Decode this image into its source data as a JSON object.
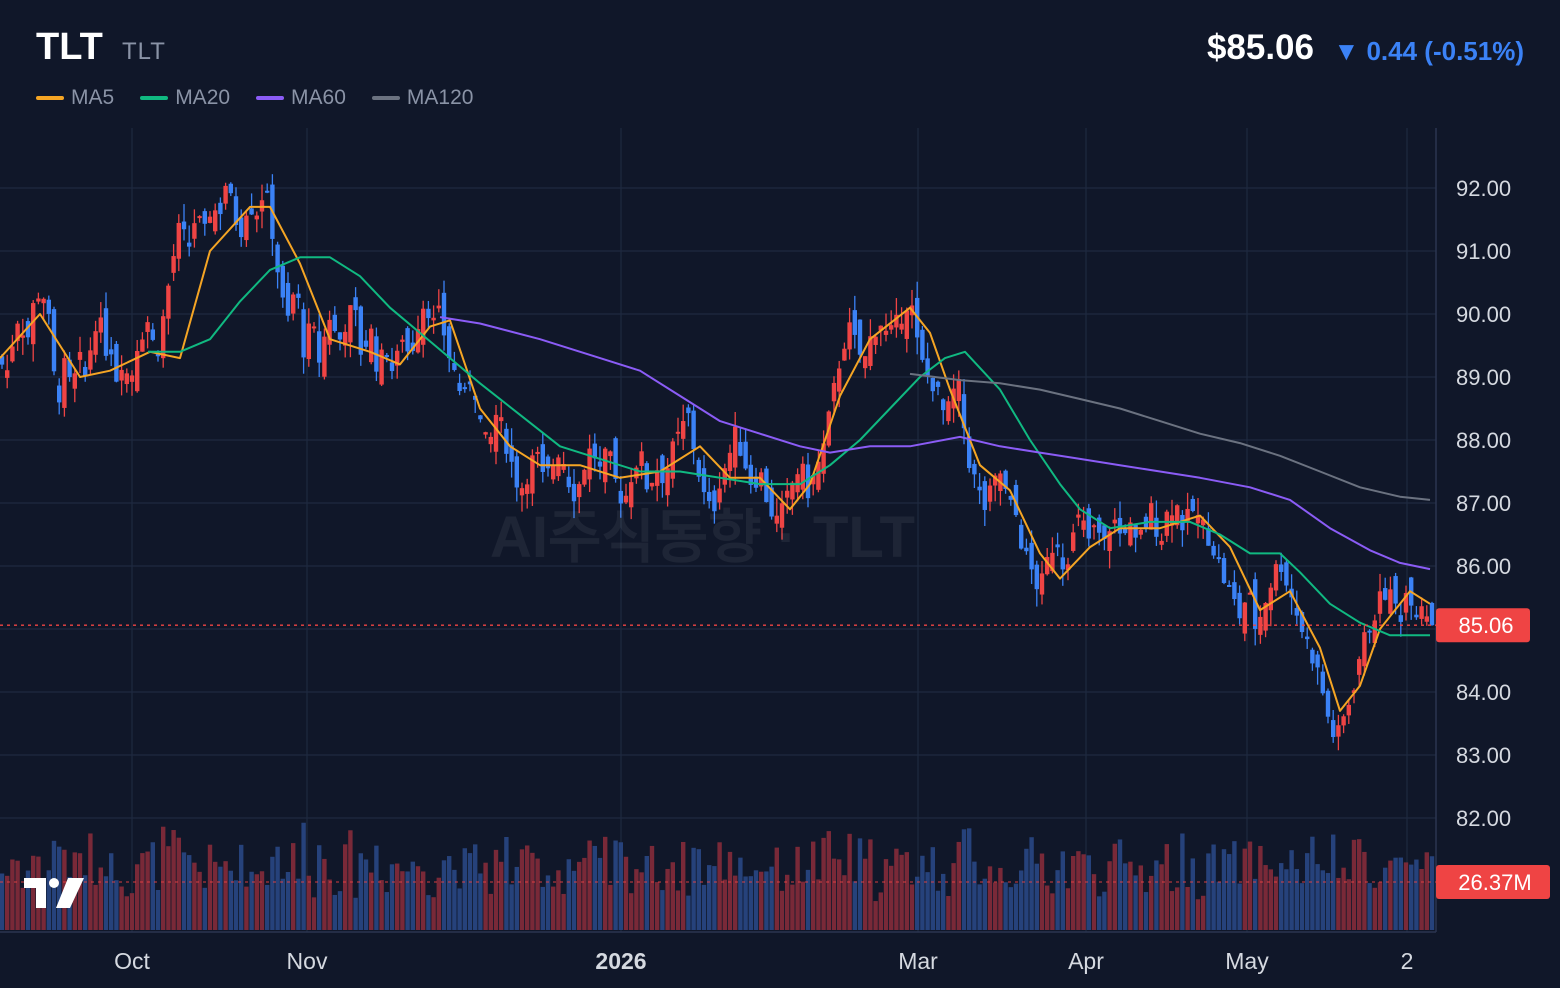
{
  "header": {
    "symbol": "TLT",
    "sub": "TLT",
    "price": "$85.06",
    "change": "▼ 0.44 (-0.51%)",
    "change_color": "#3b82f6"
  },
  "legend": [
    {
      "label": "MA5",
      "color": "#f5a524"
    },
    {
      "label": "MA20",
      "color": "#10b981"
    },
    {
      "label": "MA60",
      "color": "#8b5cf6"
    },
    {
      "label": "MA120",
      "color": "#6b7280"
    }
  ],
  "watermark": "AI주식동향 · TLT",
  "logo": "tradingview-logo",
  "chart_data": {
    "type": "candlestick",
    "y_ticks": [
      "92.00",
      "91.00",
      "90.00",
      "89.00",
      "88.00",
      "87.00",
      "86.00",
      "85.00",
      "84.00",
      "83.00",
      "82.00"
    ],
    "y_range": [
      81.2,
      92.9
    ],
    "x_ticks": [
      {
        "label": "Oct",
        "bold": false
      },
      {
        "label": "Nov",
        "bold": false
      },
      {
        "label": "2026",
        "bold": true
      },
      {
        "label": "Mar",
        "bold": false
      },
      {
        "label": "Apr",
        "bold": false
      },
      {
        "label": "May",
        "bold": false
      },
      {
        "label": "2",
        "bold": false
      }
    ],
    "last_price": 85.06,
    "last_price_label": "85.06",
    "volume_label": "26.37M",
    "colors": {
      "up": "#ef4444",
      "down": "#3b82f6",
      "ma5": "#f5a524",
      "ma20": "#10b981",
      "ma60": "#8b5cf6",
      "ma120": "#6b7280"
    },
    "close_path": [
      [
        0,
        89.3
      ],
      [
        6,
        89.0
      ],
      [
        14,
        89.7
      ],
      [
        20,
        90.1
      ],
      [
        26,
        89.4
      ],
      [
        30,
        89.9
      ],
      [
        36,
        90.3
      ],
      [
        42,
        90.4
      ],
      [
        48,
        90.0
      ],
      [
        54,
        89.0
      ],
      [
        60,
        88.7
      ],
      [
        66,
        89.3
      ],
      [
        72,
        88.6
      ],
      [
        78,
        89.4
      ],
      [
        84,
        88.9
      ],
      [
        92,
        89.6
      ],
      [
        98,
        90.1
      ],
      [
        104,
        89.4
      ],
      [
        110,
        89.6
      ],
      [
        116,
        89.0
      ],
      [
        122,
        89.3
      ],
      [
        130,
        88.9
      ],
      [
        138,
        89.6
      ],
      [
        148,
        89.9
      ],
      [
        156,
        89.3
      ],
      [
        164,
        90.0
      ],
      [
        172,
        90.8
      ],
      [
        180,
        91.4
      ],
      [
        188,
        91.0
      ],
      [
        196,
        91.6
      ],
      [
        204,
        91.2
      ],
      [
        212,
        91.8
      ],
      [
        218,
        91.5
      ],
      [
        226,
        92.1
      ],
      [
        232,
        91.7
      ],
      [
        240,
        91.3
      ],
      [
        248,
        91.8
      ],
      [
        256,
        91.6
      ],
      [
        264,
        92.0
      ],
      [
        270,
        91.6
      ],
      [
        276,
        90.9
      ],
      [
        282,
        90.2
      ],
      [
        288,
        89.9
      ],
      [
        296,
        90.5
      ],
      [
        304,
        89.4
      ],
      [
        312,
        89.9
      ],
      [
        318,
        89.2
      ],
      [
        324,
        89.6
      ],
      [
        330,
        90.0
      ],
      [
        338,
        89.5
      ],
      [
        346,
        89.9
      ],
      [
        354,
        90.1
      ],
      [
        362,
        89.3
      ],
      [
        370,
        89.8
      ],
      [
        378,
        89.1
      ],
      [
        386,
        89.5
      ],
      [
        394,
        89.0
      ],
      [
        402,
        89.7
      ],
      [
        410,
        89.3
      ],
      [
        418,
        89.9
      ],
      [
        426,
        90.3
      ],
      [
        432,
        89.8
      ],
      [
        440,
        90.0
      ],
      [
        448,
        89.4
      ],
      [
        456,
        89.0
      ],
      [
        464,
        88.6
      ],
      [
        472,
        89.1
      ],
      [
        480,
        88.3
      ],
      [
        488,
        87.8
      ],
      [
        496,
        88.4
      ],
      [
        504,
        88.1
      ],
      [
        512,
        87.6
      ],
      [
        520,
        87.2
      ],
      [
        528,
        87.5
      ],
      [
        536,
        87.8
      ],
      [
        544,
        87.3
      ],
      [
        552,
        87.6
      ],
      [
        560,
        87.9
      ],
      [
        568,
        87.4
      ],
      [
        576,
        87.1
      ],
      [
        584,
        87.6
      ],
      [
        592,
        87.9
      ],
      [
        600,
        87.5
      ],
      [
        608,
        87.8
      ],
      [
        616,
        87.3
      ],
      [
        624,
        87.0
      ],
      [
        632,
        87.5
      ],
      [
        640,
        87.8
      ],
      [
        648,
        87.2
      ],
      [
        656,
        87.6
      ],
      [
        664,
        87.4
      ],
      [
        672,
        87.8
      ],
      [
        680,
        88.1
      ],
      [
        688,
        88.4
      ],
      [
        696,
        87.7
      ],
      [
        704,
        87.1
      ],
      [
        712,
        86.8
      ],
      [
        720,
        87.4
      ],
      [
        728,
        87.7
      ],
      [
        736,
        88.1
      ],
      [
        744,
        87.7
      ],
      [
        752,
        87.3
      ],
      [
        760,
        87.5
      ],
      [
        768,
        87.0
      ],
      [
        776,
        86.7
      ],
      [
        784,
        86.9
      ],
      [
        792,
        87.3
      ],
      [
        800,
        87.6
      ],
      [
        808,
        87.2
      ],
      [
        816,
        87.5
      ],
      [
        824,
        87.9
      ],
      [
        832,
        88.6
      ],
      [
        840,
        89.3
      ],
      [
        848,
        89.8
      ],
      [
        856,
        89.5
      ],
      [
        864,
        89.2
      ],
      [
        872,
        89.7
      ],
      [
        880,
        89.9
      ],
      [
        888,
        89.6
      ],
      [
        896,
        89.8
      ],
      [
        904,
        90.1
      ],
      [
        910,
        90.3
      ],
      [
        916,
        89.6
      ],
      [
        922,
        89.2
      ],
      [
        928,
        89.0
      ],
      [
        934,
        88.9
      ],
      [
        940,
        88.6
      ],
      [
        946,
        88.3
      ],
      [
        952,
        88.7
      ],
      [
        958,
        88.9
      ],
      [
        964,
        88.2
      ],
      [
        970,
        87.6
      ],
      [
        976,
        87.3
      ],
      [
        984,
        86.9
      ],
      [
        992,
        87.2
      ],
      [
        1000,
        87.5
      ],
      [
        1008,
        87.0
      ],
      [
        1016,
        86.8
      ],
      [
        1024,
        86.2
      ],
      [
        1032,
        85.9
      ],
      [
        1040,
        85.6
      ],
      [
        1048,
        86.1
      ],
      [
        1056,
        86.5
      ],
      [
        1064,
        86.0
      ],
      [
        1072,
        86.4
      ],
      [
        1080,
        86.8
      ],
      [
        1088,
        86.4
      ],
      [
        1096,
        86.6
      ],
      [
        1104,
        86.3
      ],
      [
        1112,
        86.8
      ],
      [
        1120,
        86.5
      ],
      [
        1128,
        86.7
      ],
      [
        1136,
        86.3
      ],
      [
        1144,
        86.6
      ],
      [
        1152,
        86.9
      ],
      [
        1160,
        86.4
      ],
      [
        1168,
        86.9
      ],
      [
        1176,
        87.0
      ],
      [
        1184,
        86.6
      ],
      [
        1192,
        86.9
      ],
      [
        1200,
        86.7
      ],
      [
        1208,
        86.5
      ],
      [
        1216,
        86.2
      ],
      [
        1224,
        85.8
      ],
      [
        1232,
        85.5
      ],
      [
        1240,
        85.2
      ],
      [
        1248,
        85.6
      ],
      [
        1256,
        85.0
      ],
      [
        1264,
        85.4
      ],
      [
        1272,
        85.8
      ],
      [
        1280,
        86.1
      ],
      [
        1288,
        85.7
      ],
      [
        1296,
        85.3
      ],
      [
        1304,
        84.9
      ],
      [
        1312,
        84.6
      ],
      [
        1320,
        84.2
      ],
      [
        1328,
        83.6
      ],
      [
        1336,
        83.2
      ],
      [
        1344,
        83.6
      ],
      [
        1352,
        84.0
      ],
      [
        1360,
        84.6
      ],
      [
        1368,
        85.0
      ],
      [
        1376,
        85.3
      ],
      [
        1384,
        85.6
      ],
      [
        1392,
        85.5
      ],
      [
        1400,
        85.2
      ],
      [
        1408,
        85.7
      ],
      [
        1416,
        85.3
      ],
      [
        1424,
        85.5
      ],
      [
        1430,
        85.06
      ]
    ],
    "ma_sparse": {
      "ma5": [
        [
          0,
          89.3
        ],
        [
          40,
          90.0
        ],
        [
          80,
          89.0
        ],
        [
          110,
          89.1
        ],
        [
          150,
          89.4
        ],
        [
          180,
          89.3
        ],
        [
          210,
          91.0
        ],
        [
          250,
          91.7
        ],
        [
          270,
          91.7
        ],
        [
          300,
          90.8
        ],
        [
          330,
          89.6
        ],
        [
          370,
          89.4
        ],
        [
          400,
          89.2
        ],
        [
          430,
          89.8
        ],
        [
          450,
          89.9
        ],
        [
          480,
          88.5
        ],
        [
          510,
          87.9
        ],
        [
          540,
          87.6
        ],
        [
          580,
          87.6
        ],
        [
          620,
          87.4
        ],
        [
          660,
          87.5
        ],
        [
          700,
          87.9
        ],
        [
          730,
          87.4
        ],
        [
          760,
          87.4
        ],
        [
          790,
          86.9
        ],
        [
          810,
          87.3
        ],
        [
          840,
          88.7
        ],
        [
          870,
          89.6
        ],
        [
          910,
          90.1
        ],
        [
          930,
          89.7
        ],
        [
          950,
          88.8
        ],
        [
          980,
          87.6
        ],
        [
          1010,
          87.2
        ],
        [
          1040,
          86.2
        ],
        [
          1060,
          85.8
        ],
        [
          1090,
          86.3
        ],
        [
          1120,
          86.6
        ],
        [
          1160,
          86.6
        ],
        [
          1200,
          86.8
        ],
        [
          1230,
          86.3
        ],
        [
          1260,
          85.3
        ],
        [
          1290,
          85.6
        ],
        [
          1320,
          84.7
        ],
        [
          1340,
          83.7
        ],
        [
          1360,
          84.1
        ],
        [
          1380,
          85.0
        ],
        [
          1410,
          85.6
        ],
        [
          1430,
          85.4
        ]
      ],
      "ma20": [
        [
          148,
          89.4
        ],
        [
          180,
          89.4
        ],
        [
          210,
          89.6
        ],
        [
          240,
          90.2
        ],
        [
          270,
          90.7
        ],
        [
          300,
          90.9
        ],
        [
          330,
          90.9
        ],
        [
          360,
          90.6
        ],
        [
          390,
          90.1
        ],
        [
          420,
          89.7
        ],
        [
          450,
          89.3
        ],
        [
          480,
          88.9
        ],
        [
          520,
          88.4
        ],
        [
          560,
          87.9
        ],
        [
          600,
          87.7
        ],
        [
          640,
          87.5
        ],
        [
          680,
          87.5
        ],
        [
          720,
          87.4
        ],
        [
          760,
          87.3
        ],
        [
          800,
          87.3
        ],
        [
          830,
          87.6
        ],
        [
          860,
          88.0
        ],
        [
          890,
          88.5
        ],
        [
          920,
          89.0
        ],
        [
          945,
          89.3
        ],
        [
          965,
          89.4
        ],
        [
          1000,
          88.8
        ],
        [
          1030,
          88.0
        ],
        [
          1060,
          87.3
        ],
        [
          1080,
          86.9
        ],
        [
          1110,
          86.6
        ],
        [
          1150,
          86.7
        ],
        [
          1190,
          86.7
        ],
        [
          1220,
          86.5
        ],
        [
          1250,
          86.2
        ],
        [
          1280,
          86.2
        ],
        [
          1300,
          85.9
        ],
        [
          1330,
          85.4
        ],
        [
          1360,
          85.1
        ],
        [
          1390,
          84.9
        ],
        [
          1430,
          84.9
        ]
      ],
      "ma60": [
        [
          440,
          89.95
        ],
        [
          480,
          89.85
        ],
        [
          540,
          89.6
        ],
        [
          600,
          89.3
        ],
        [
          640,
          89.1
        ],
        [
          680,
          88.7
        ],
        [
          720,
          88.3
        ],
        [
          760,
          88.1
        ],
        [
          800,
          87.9
        ],
        [
          830,
          87.8
        ],
        [
          870,
          87.9
        ],
        [
          910,
          87.9
        ],
        [
          960,
          88.05
        ],
        [
          1000,
          87.9
        ],
        [
          1040,
          87.8
        ],
        [
          1080,
          87.7
        ],
        [
          1120,
          87.6
        ],
        [
          1160,
          87.5
        ],
        [
          1200,
          87.4
        ],
        [
          1250,
          87.25
        ],
        [
          1290,
          87.05
        ],
        [
          1330,
          86.6
        ],
        [
          1370,
          86.25
        ],
        [
          1400,
          86.05
        ],
        [
          1430,
          85.95
        ]
      ],
      "ma120": [
        [
          910,
          89.05
        ],
        [
          960,
          88.95
        ],
        [
          1000,
          88.9
        ],
        [
          1040,
          88.8
        ],
        [
          1080,
          88.65
        ],
        [
          1120,
          88.5
        ],
        [
          1160,
          88.3
        ],
        [
          1200,
          88.1
        ],
        [
          1240,
          87.95
        ],
        [
          1280,
          87.75
        ],
        [
          1320,
          87.5
        ],
        [
          1360,
          87.25
        ],
        [
          1400,
          87.1
        ],
        [
          1430,
          87.05
        ]
      ]
    }
  }
}
